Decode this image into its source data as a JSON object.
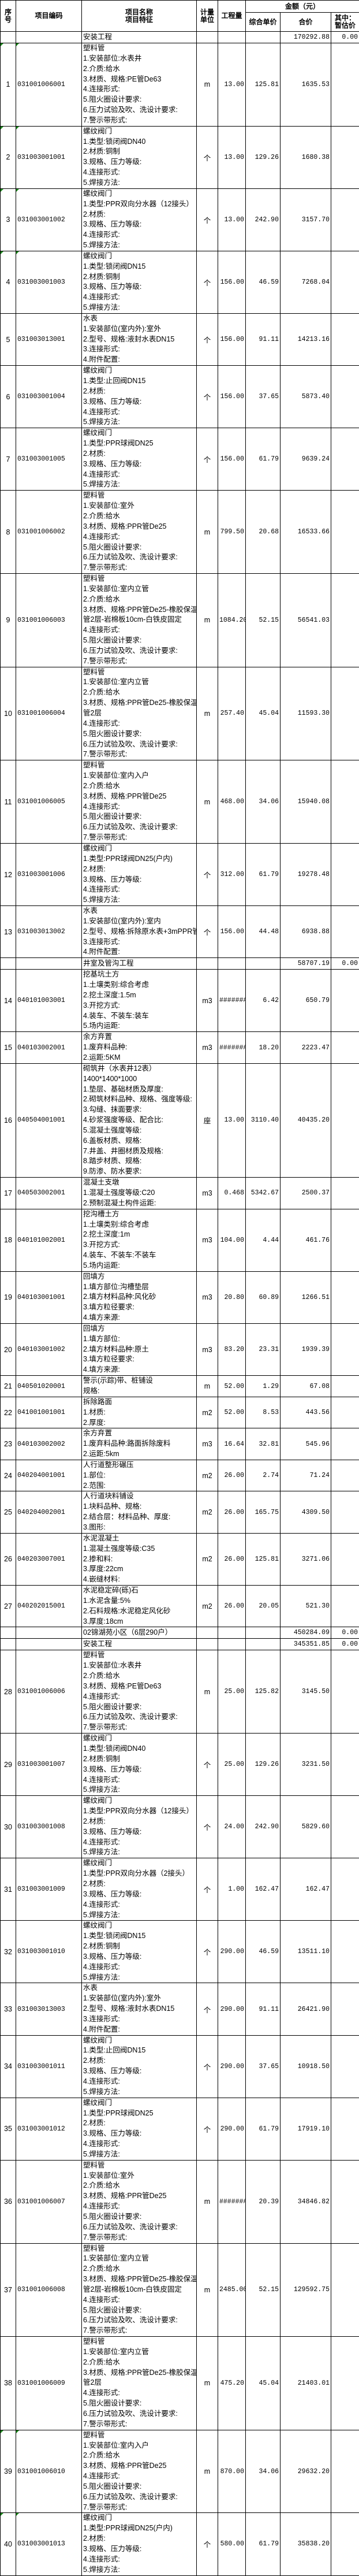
{
  "header": {
    "seq": "序号",
    "code": "项目编码",
    "name": "项目名称",
    "feature": "项目特征",
    "unit": "计量单位",
    "qty": "工程量",
    "amount": "金额（元）",
    "unit_price": "综合单价",
    "total": "合价",
    "provisional": "其中：暂估价"
  },
  "rows": [
    {
      "type": "section",
      "name": "安装工程",
      "total": "170292.88",
      "provisional": "0.00"
    },
    {
      "seq": "1",
      "code": "031001006001",
      "lines": [
        "塑料管",
        "1.安装部位:水表井",
        "2.介质:给水",
        "3.材质、规格:PE管De63",
        "4.连接形式:",
        "5.阻火圈设计要求:",
        "6.压力试验及吹、洗设计要求:",
        "7.警示带形式:"
      ],
      "unit": "m",
      "qty": "13.00",
      "price": "125.81",
      "total": "1635.53",
      "mark": true
    },
    {
      "seq": "2",
      "code": "031003001001",
      "lines": [
        "螺纹阀门",
        "1.类型:锁闭阀DN40",
        "2.材质:铜制",
        "3.规格、压力等级:",
        "4.连接形式:",
        "5.焊接方法:"
      ],
      "unit": "个",
      "qty": "13.00",
      "price": "129.26",
      "total": "1680.38",
      "mark": true
    },
    {
      "seq": "3",
      "code": "031003001002",
      "lines": [
        "螺纹阀门",
        "1.类型:PPR双向分水器（12接头）",
        "2.材质:",
        "3.规格、压力等级:",
        "4.连接形式:",
        "5.焊接方法:"
      ],
      "unit": "个",
      "qty": "13.00",
      "price": "242.90",
      "total": "3157.70",
      "mark": true
    },
    {
      "seq": "4",
      "code": "031003001003",
      "lines": [
        "螺纹阀门",
        "1.类型:锁闭阀DN15",
        "2.材质:铜制",
        "3.规格、压力等级:",
        "4.连接形式:",
        "5.焊接方法:"
      ],
      "unit": "个",
      "qty": "156.00",
      "price": "46.59",
      "total": "7268.04",
      "mark": true
    },
    {
      "seq": "5",
      "code": "031003013001",
      "lines": [
        "水表",
        "1.安装部位(室内外):室外",
        "2.型号、规格:液封水表DN15",
        "3.连接形式:",
        "4.附件配置:"
      ],
      "unit": "个",
      "qty": "156.00",
      "price": "91.11",
      "total": "14213.16"
    },
    {
      "seq": "6",
      "code": "031003001004",
      "lines": [
        "螺纹阀门",
        "1.类型:止回阀DN15",
        "2.材质:",
        "3.规格、压力等级:",
        "4.连接形式:",
        "5.焊接方法:"
      ],
      "unit": "个",
      "qty": "156.00",
      "price": "37.65",
      "total": "5873.40"
    },
    {
      "seq": "7",
      "code": "031003001005",
      "lines": [
        "螺纹阀门",
        "1.类型:PPR球阀DN25",
        "2.材质:",
        "3.规格、压力等级:",
        "4.连接形式:",
        "5.焊接方法:"
      ],
      "unit": "个",
      "qty": "156.00",
      "price": "61.79",
      "total": "9639.24"
    },
    {
      "seq": "8",
      "code": "031001006002",
      "lines": [
        "塑料管",
        "1.安装部位:室外",
        "2.介质:给水",
        "3.材质、规格:PPR管De25",
        "4.连接形式:",
        "5.阻火圈设计要求:",
        "6.压力试验及吹、洗设计要求:",
        "7.警示带形式:"
      ],
      "unit": "m",
      "qty": "799.50",
      "price": "20.68",
      "total": "16533.66"
    },
    {
      "seq": "9",
      "code": "031001006003",
      "lines": [
        "塑料管",
        "1.安装部位:室内立管",
        "2.介质:给水",
        "3.材质、规格:PPR管De25-橡胶保温",
        "管2层-岩棉板10cm-白铁皮固定",
        "4.连接形式:",
        "5.阻火圈设计要求:",
        "6.压力试验及吹、洗设计要求:",
        "7.警示带形式:"
      ],
      "unit": "m",
      "qty": "1084.20",
      "price": "52.15",
      "total": "56541.03"
    },
    {
      "seq": "10",
      "code": "031001006004",
      "lines": [
        "塑料管",
        "1.安装部位:室内立管",
        "2.介质:给水",
        "3.材质、规格:PPR管De25-橡胶保温",
        "管2层",
        "4.连接形式:",
        "5.阻火圈设计要求:",
        "6.压力试验及吹、洗设计要求:",
        "7.警示带形式:"
      ],
      "unit": "m",
      "qty": "257.40",
      "price": "45.04",
      "total": "11593.30"
    },
    {
      "seq": "11",
      "code": "031001006005",
      "lines": [
        "塑料管",
        "1.安装部位:室内入户",
        "2.介质:给水",
        "3.材质、规格:PPR管De25",
        "4.连接形式:",
        "5.阻火圈设计要求:",
        "6.压力试验及吹、洗设计要求:",
        "7.警示带形式:"
      ],
      "unit": "m",
      "qty": "468.00",
      "price": "34.06",
      "total": "15940.08"
    },
    {
      "seq": "12",
      "code": "031003001006",
      "lines": [
        "螺纹阀门",
        "1.类型:PPR球阀DN25(户内)",
        "2.材质:",
        "3.规格、压力等级:",
        "4.连接形式:",
        "5.焊接方法:"
      ],
      "unit": "个",
      "qty": "312.00",
      "price": "61.79",
      "total": "19278.48"
    },
    {
      "seq": "13",
      "code": "031003013002",
      "lines": [
        "水表",
        "1.安装部位(室内外):室内",
        "2.型号、规格:拆除原水表+3mPPR管",
        "3.连接形式:",
        "4.附件配置:"
      ],
      "unit": "个",
      "qty": "156.00",
      "price": "44.48",
      "total": "6938.88"
    },
    {
      "type": "section",
      "name": "井室及管沟工程",
      "total": "58707.19",
      "provisional": "0.00"
    },
    {
      "seq": "14",
      "code": "040101003001",
      "lines": [
        "挖基坑土方",
        "1.土壤类别:综合考虑",
        "2.挖土深度:1.5m",
        "3.开挖方式:",
        "4.装车、不装车:装车",
        "5.场内运距:"
      ],
      "unit": "m3",
      "qty": "#######",
      "price": "6.42",
      "total": "650.79"
    },
    {
      "seq": "15",
      "code": "040103002001",
      "lines": [
        "余方弃置",
        "1.废弃料品种:",
        "2.运距:5KM"
      ],
      "unit": "m3",
      "qty": "#######",
      "price": "18.20",
      "total": "2223.47"
    },
    {
      "seq": "16",
      "code": "040504001001",
      "lines": [
        "砌筑井（水表井12表）",
        "1400*1400*1000",
        "1.垫层、基础材质及厚度:",
        "2.砌筑材料品种、规格、强度等级:",
        "3.勾缝、抹面要求:",
        "4.砂浆强度等级、配合比:",
        "5.混凝土强度等级:",
        "6.盖板材质、规格:",
        "7.井盖、井圈材质及规格:",
        "8.踏步材质、规格:",
        "9.防渗、防水要求:"
      ],
      "unit": "座",
      "qty": "13.00",
      "price": "3110.40",
      "total": "40435.20"
    },
    {
      "seq": "17",
      "code": "040503002001",
      "lines": [
        "混凝土支墩",
        "1.混凝土强度等级:C20",
        "2.预制混凝土构件运距:"
      ],
      "unit": "m3",
      "qty": "0.468",
      "price": "5342.67",
      "total": "2500.37"
    },
    {
      "seq": "18",
      "code": "040101002001",
      "lines": [
        "挖沟槽土方",
        "1.土壤类别:综合考虑",
        "2.挖土深度:1m",
        "3.开挖方式:",
        "4.装车、不装车:不装车",
        "5.场内运距:"
      ],
      "unit": "m3",
      "qty": "104.00",
      "price": "4.44",
      "total": "461.76"
    },
    {
      "seq": "19",
      "code": "040103001001",
      "lines": [
        "回填方",
        "1.填方部位:沟槽垫层",
        "2.填方材料品种:风化砂",
        "3.填方粒径要求:",
        "4.填方来源:"
      ],
      "unit": "m3",
      "qty": "20.80",
      "price": "60.89",
      "total": "1266.51"
    },
    {
      "seq": "20",
      "code": "040103001002",
      "lines": [
        "回填方",
        "1.填方部位:",
        "2.填方材料品种:原土",
        "3.填方粒径要求:",
        "4.填方来源:"
      ],
      "unit": "m3",
      "qty": "83.20",
      "price": "23.31",
      "total": "1939.39"
    },
    {
      "seq": "21",
      "code": "040501020001",
      "lines": [
        "警示(示踪)带、桩铺设",
        "规格:"
      ],
      "unit": "m",
      "qty": "52.00",
      "price": "1.29",
      "total": "67.08"
    },
    {
      "seq": "22",
      "code": "041001001001",
      "lines": [
        "拆除路面",
        "1.材质:",
        "2.厚度:"
      ],
      "unit": "m2",
      "qty": "52.00",
      "price": "8.53",
      "total": "443.56"
    },
    {
      "seq": "23",
      "code": "040103002002",
      "lines": [
        "余方弃置",
        "1.废弃料品种:路面拆除废料",
        "2.运距:5km"
      ],
      "unit": "m3",
      "qty": "16.64",
      "price": "32.81",
      "total": "545.96"
    },
    {
      "seq": "24",
      "code": "040204001001",
      "lines": [
        "人行道整形碾压",
        "1.部位:",
        "2.范围:"
      ],
      "unit": "m2",
      "qty": "26.00",
      "price": "2.74",
      "total": "71.24"
    },
    {
      "seq": "25",
      "code": "040204002001",
      "lines": [
        "人行道块料铺设",
        "1.块料品种、规格:",
        "2.结合层：材料品种、厚度:",
        "3.图形:"
      ],
      "unit": "m2",
      "qty": "26.00",
      "price": "165.75",
      "total": "4309.50"
    },
    {
      "seq": "26",
      "code": "040203007001",
      "lines": [
        "水泥混凝土",
        "1.混凝土强度等级:C35",
        "2.掺和料:",
        "3.厚度:22cm",
        "4.嵌缝材料:"
      ],
      "unit": "m2",
      "qty": "26.00",
      "price": "125.81",
      "total": "3271.06"
    },
    {
      "seq": "27",
      "code": "040202015001",
      "lines": [
        "水泥稳定碎(砾)石",
        "1.水泥含量:5%",
        "2.石料规格:水泥稳定风化砂",
        "3.厚度:18cm"
      ],
      "unit": "m2",
      "qty": "26.00",
      "price": "20.05",
      "total": "521.30"
    },
    {
      "type": "section",
      "name": "02锦湖苑小区（6层290户）",
      "total": "450284.09",
      "provisional": "0.00"
    },
    {
      "type": "section",
      "name": "安装工程",
      "total": "345351.85",
      "provisional": "0.00"
    },
    {
      "seq": "28",
      "code": "031001006006",
      "lines": [
        "塑料管",
        "1.安装部位:水表井",
        "2.介质:给水",
        "3.材质、规格:PE管De63",
        "4.连接形式:",
        "5.阻火圈设计要求:",
        "6.压力试验及吹、洗设计要求:",
        "7.警示带形式:"
      ],
      "unit": "m",
      "qty": "25.00",
      "price": "125.82",
      "total": "3145.50"
    },
    {
      "seq": "29",
      "code": "031003001007",
      "lines": [
        "螺纹阀门",
        "1.类型:锁闭阀DN40",
        "2.材质:铜制",
        "3.规格、压力等级:",
        "4.连接形式:",
        "5.焊接方法:"
      ],
      "unit": "个",
      "qty": "25.00",
      "price": "129.26",
      "total": "3231.50"
    },
    {
      "seq": "30",
      "code": "031003001008",
      "lines": [
        "螺纹阀门",
        "1.类型:PPR双向分水器（12接头）",
        "2.材质:",
        "3.规格、压力等级:",
        "4.连接形式:",
        "5.焊接方法:"
      ],
      "unit": "个",
      "qty": "24.00",
      "price": "242.90",
      "total": "5829.60"
    },
    {
      "seq": "31",
      "code": "031003001009",
      "lines": [
        "螺纹阀门",
        "1.类型:PPR双向分水器（2接头）",
        "2.材质:",
        "3.规格、压力等级:",
        "4.连接形式:",
        "5.焊接方法:"
      ],
      "unit": "个",
      "qty": "1.00",
      "price": "162.47",
      "total": "162.47"
    },
    {
      "seq": "32",
      "code": "031003001010",
      "lines": [
        "螺纹阀门",
        "1.类型:锁闭阀DN15",
        "2.材质:铜制",
        "3.规格、压力等级:",
        "4.连接形式:",
        "5.焊接方法:"
      ],
      "unit": "个",
      "qty": "290.00",
      "price": "46.59",
      "total": "13511.10"
    },
    {
      "seq": "33",
      "code": "031003013003",
      "lines": [
        "水表",
        "1.安装部位(室内外):室外",
        "2.型号、规格:液封水表DN15",
        "3.连接形式:",
        "4.附件配置:"
      ],
      "unit": "个",
      "qty": "290.00",
      "price": "91.11",
      "total": "26421.90"
    },
    {
      "seq": "34",
      "code": "031003001011",
      "lines": [
        "螺纹阀门",
        "1.类型:止回阀DN15",
        "2.材质:",
        "3.规格、压力等级:",
        "4.连接形式:",
        "5.焊接方法:"
      ],
      "unit": "个",
      "qty": "290.00",
      "price": "37.65",
      "total": "10918.50"
    },
    {
      "seq": "35",
      "code": "031003001012",
      "lines": [
        "螺纹阀门",
        "1.类型:PPR球阀DN25",
        "2.材质:",
        "3.规格、压力等级:",
        "4.连接形式:",
        "5.焊接方法:"
      ],
      "unit": "个",
      "qty": "290.00",
      "price": "61.79",
      "total": "17919.10"
    },
    {
      "seq": "36",
      "code": "031001006007",
      "lines": [
        "塑料管",
        "1.安装部位:室外",
        "2.介质:给水",
        "3.材质、规格:PPR管De25",
        "4.连接形式:",
        "5.阻火圈设计要求:",
        "6.压力试验及吹、洗设计要求:",
        "7.警示带形式:"
      ],
      "unit": "m",
      "qty": "#######",
      "price": "20.39",
      "total": "34846.82"
    },
    {
      "seq": "37",
      "code": "031001006008",
      "lines": [
        "塑料管",
        "1.安装部位:室内立管",
        "2.介质:给水",
        "3.材质、规格:PPR管De25-橡胶保温",
        "管2层-岩棉板10cm-白铁皮固定",
        "4.连接形式:",
        "5.阻火圈设计要求:",
        "6.压力试验及吹、洗设计要求:",
        "7.警示带形式:"
      ],
      "unit": "m",
      "qty": "2485.00",
      "price": "52.15",
      "total": "129592.75"
    },
    {
      "seq": "38",
      "code": "031001006009",
      "lines": [
        "塑料管",
        "1.安装部位:室内立管",
        "2.介质:给水",
        "3.材质、规格:PPR管De25-橡胶保温",
        "管2层",
        "4.连接形式:",
        "5.阻火圈设计要求:",
        "6.压力试验及吹、洗设计要求:",
        "7.警示带形式:"
      ],
      "unit": "m",
      "qty": "475.20",
      "price": "45.04",
      "total": "21403.01"
    },
    {
      "seq": "39",
      "code": "031001006010",
      "lines": [
        "塑料管",
        "1.安装部位:室内入户",
        "2.介质:给水",
        "3.材质、规格:PPR管De25",
        "4.连接形式:",
        "5.阻火圈设计要求:",
        "6.压力试验及吹、洗设计要求:",
        "7.警示带形式:"
      ],
      "unit": "m",
      "qty": "870.00",
      "price": "34.06",
      "total": "29632.20",
      "mark": true
    },
    {
      "seq": "40",
      "code": "031003001013",
      "lines": [
        "螺纹阀门",
        "1.类型:PPR球阀DN25(户内)",
        "2.材质:",
        "3.规格、压力等级:",
        "4.连接形式:",
        "5.焊接方法:"
      ],
      "unit": "个",
      "qty": "580.00",
      "price": "61.79",
      "total": "35838.20",
      "mark": true
    }
  ],
  "colors": {
    "border": "#000000",
    "marker": "#1a8a1a"
  }
}
